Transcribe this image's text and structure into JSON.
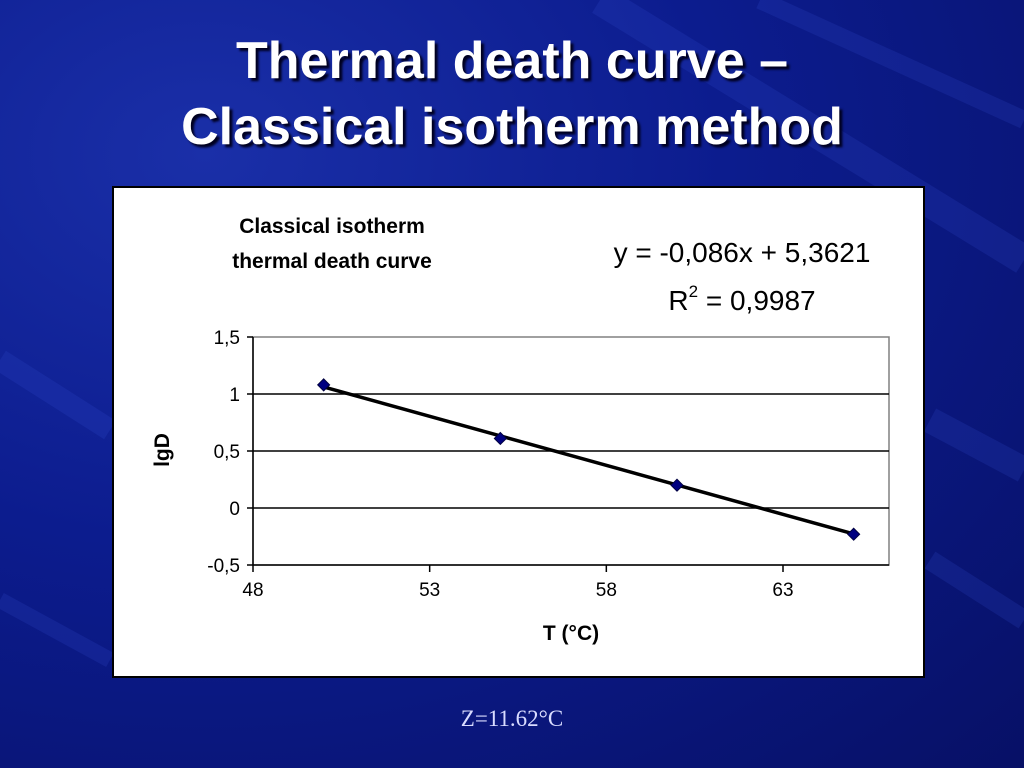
{
  "slide": {
    "title_line1": "Thermal death curve –",
    "title_line2": "Classical isotherm method",
    "footnote": "Z=11.62°C"
  },
  "chart_data": {
    "type": "scatter",
    "title_line1": "Classical isotherm",
    "title_line2": "thermal death curve",
    "xlabel": "T (°C)",
    "ylabel": "lgD",
    "xlim": [
      48,
      66
    ],
    "ylim": [
      -0.5,
      1.5
    ],
    "x_ticks": [
      48,
      53,
      58,
      63
    ],
    "x_tick_labels": [
      "48",
      "53",
      "58",
      "63"
    ],
    "y_ticks": [
      -0.5,
      0,
      0.5,
      1,
      1.5
    ],
    "y_tick_labels": [
      "-0,5",
      "0",
      "0,5",
      "1",
      "1,5"
    ],
    "grid": "horizontal major",
    "series": [
      {
        "x": [
          50,
          55,
          60,
          65
        ],
        "y": [
          1.08,
          0.61,
          0.2,
          -0.23
        ],
        "marker": "diamond",
        "color": "#000080"
      }
    ],
    "trendline": {
      "equation": "y = -0,086x + 5,3621",
      "r2_prefix": "R",
      "r2_sup": "2",
      "r2_rest": " = 0,9987",
      "slope": -0.086,
      "intercept": 5.3621,
      "color": "#000000"
    }
  }
}
